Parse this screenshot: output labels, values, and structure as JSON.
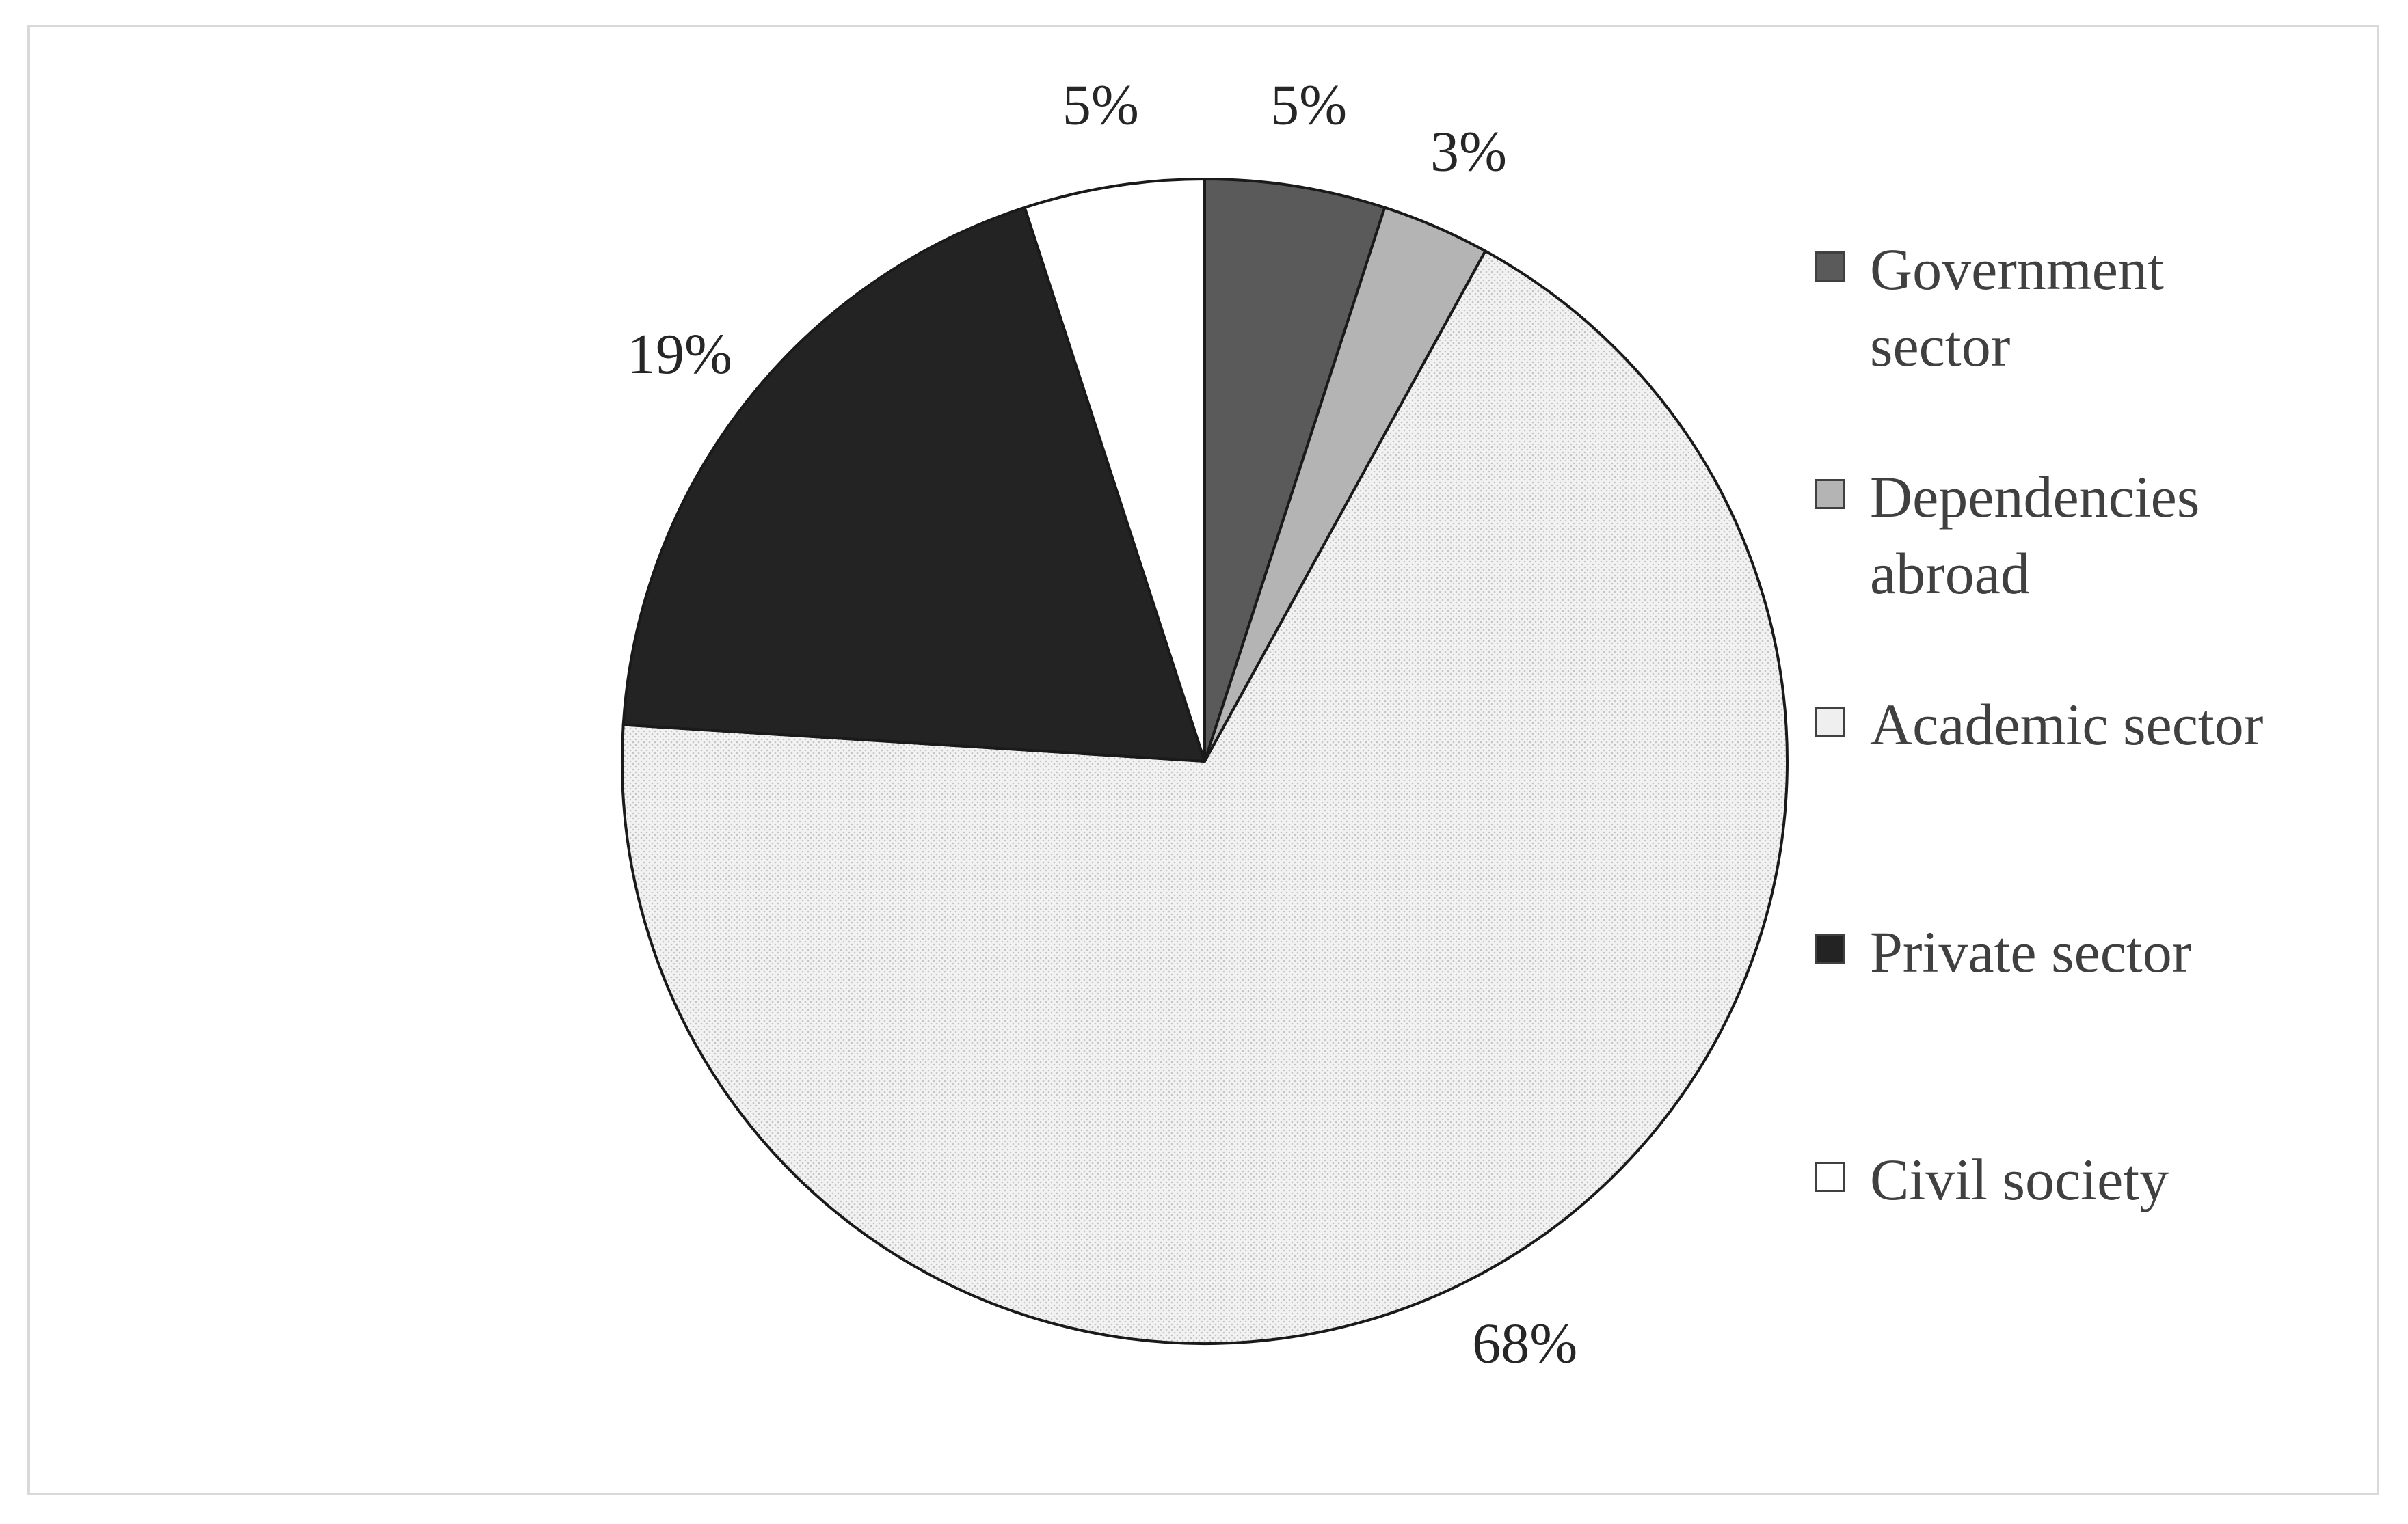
{
  "chart_data": {
    "type": "pie",
    "title": "",
    "slices": [
      {
        "label": "Government sector",
        "value": 5,
        "display": "5%",
        "color": "#5a5a5a",
        "pattern": "solid"
      },
      {
        "label": "Dependencies abroad",
        "value": 3,
        "display": "3%",
        "color": "#b4b4b4",
        "pattern": "solid"
      },
      {
        "label": "Academic sector",
        "value": 68,
        "display": "68%",
        "color": "#efefef",
        "pattern": "dotted"
      },
      {
        "label": "Private sector",
        "value": 19,
        "display": "19%",
        "color": "#232323",
        "pattern": "solid"
      },
      {
        "label": "Civil society",
        "value": 5,
        "display": "5%",
        "color": "#ffffff",
        "pattern": "solid"
      }
    ],
    "legend_position": "right",
    "start_angle": "12 o'clock, clockwise",
    "outline_color": "#1a1a1a"
  },
  "legend": {
    "items": [
      {
        "line1": "Government",
        "line2": "sector",
        "color": "#5a5a5a"
      },
      {
        "line1": "Dependencies",
        "line2": "abroad",
        "color": "#b4b4b4"
      },
      {
        "line1": "Academic sector",
        "line2": "",
        "color": "#efefef"
      },
      {
        "line1": "Private sector",
        "line2": "",
        "color": "#232323"
      },
      {
        "line1": "Civil society",
        "line2": "",
        "color": "#ffffff"
      }
    ]
  }
}
